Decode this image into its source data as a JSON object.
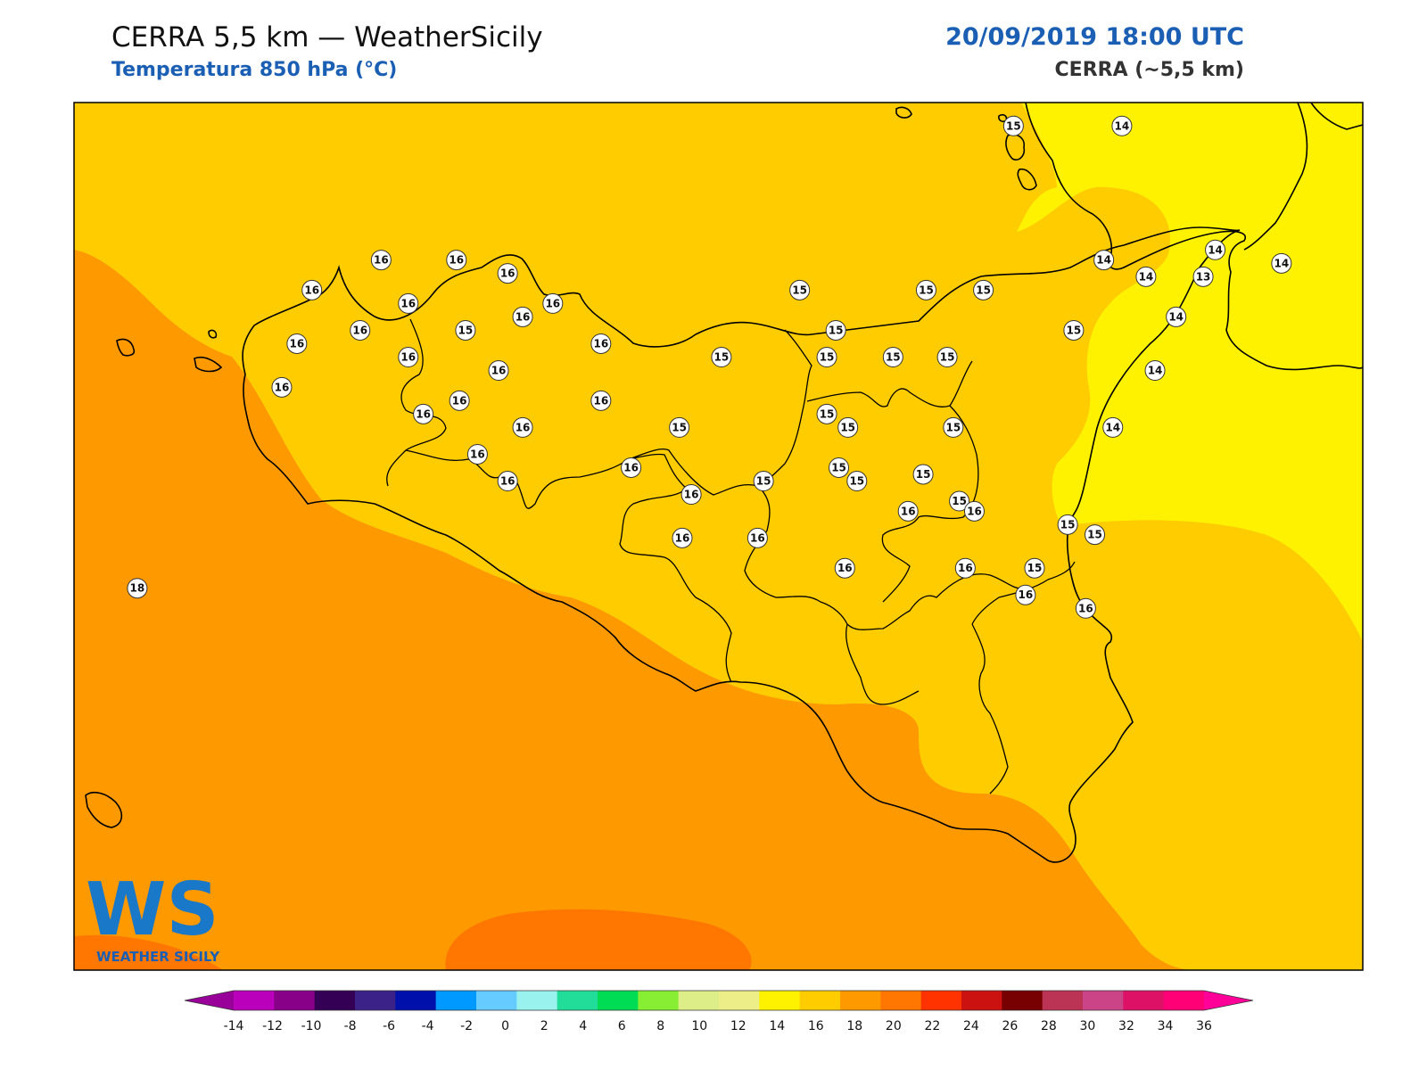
{
  "header": {
    "title": "CERRA 5,5 km — WeatherSicily",
    "subtitle": "Temperatura 850 hPa (°C)",
    "datetime": "20/09/2019 18:00 UTC",
    "model": "CERRA (~5,5 km)"
  },
  "logo": {
    "letters": "WS",
    "text": "WEATHER SICILY"
  },
  "colors": {
    "t12_14": "#fff200",
    "t14_16": "#ffcc00",
    "t16_18": "#ff9900",
    "t18_20": "#ff7700",
    "coast": "#000000",
    "accent": "#1a5fb4"
  },
  "point_labels": [
    {
      "v": "15",
      "lon": 14.88,
      "lat": 38.72
    },
    {
      "v": "14",
      "lon": 15.24,
      "lat": 38.72
    },
    {
      "v": "16",
      "lon": 12.78,
      "lat": 38.32
    },
    {
      "v": "16",
      "lon": 13.03,
      "lat": 38.32
    },
    {
      "v": "16",
      "lon": 13.2,
      "lat": 38.28
    },
    {
      "v": "14",
      "lon": 15.55,
      "lat": 38.35
    },
    {
      "v": "14",
      "lon": 15.77,
      "lat": 38.31
    },
    {
      "v": "14",
      "lon": 15.18,
      "lat": 38.32
    },
    {
      "v": "16",
      "lon": 12.55,
      "lat": 38.23
    },
    {
      "v": "15",
      "lon": 14.17,
      "lat": 38.23
    },
    {
      "v": "15",
      "lon": 14.59,
      "lat": 38.23
    },
    {
      "v": "15",
      "lon": 14.78,
      "lat": 38.23
    },
    {
      "v": "14",
      "lon": 15.32,
      "lat": 38.27
    },
    {
      "v": "13",
      "lon": 15.51,
      "lat": 38.27
    },
    {
      "v": "16",
      "lon": 12.87,
      "lat": 38.19
    },
    {
      "v": "16",
      "lon": 13.35,
      "lat": 38.19
    },
    {
      "v": "16",
      "lon": 13.25,
      "lat": 38.15
    },
    {
      "v": "16",
      "lon": 12.71,
      "lat": 38.11
    },
    {
      "v": "15",
      "lon": 13.06,
      "lat": 38.11
    },
    {
      "v": "15",
      "lon": 14.29,
      "lat": 38.11
    },
    {
      "v": "15",
      "lon": 15.08,
      "lat": 38.11
    },
    {
      "v": "14",
      "lon": 15.42,
      "lat": 38.15
    },
    {
      "v": "16",
      "lon": 12.5,
      "lat": 38.07
    },
    {
      "v": "16",
      "lon": 13.51,
      "lat": 38.07
    },
    {
      "v": "16",
      "lon": 12.87,
      "lat": 38.03
    },
    {
      "v": "15",
      "lon": 13.91,
      "lat": 38.03
    },
    {
      "v": "15",
      "lon": 14.26,
      "lat": 38.03
    },
    {
      "v": "15",
      "lon": 14.48,
      "lat": 38.03
    },
    {
      "v": "15",
      "lon": 14.66,
      "lat": 38.03
    },
    {
      "v": "16",
      "lon": 13.17,
      "lat": 37.99
    },
    {
      "v": "14",
      "lon": 15.35,
      "lat": 37.99
    },
    {
      "v": "16",
      "lon": 12.45,
      "lat": 37.94
    },
    {
      "v": "16",
      "lon": 13.04,
      "lat": 37.9
    },
    {
      "v": "16",
      "lon": 13.51,
      "lat": 37.9
    },
    {
      "v": "16",
      "lon": 12.92,
      "lat": 37.86
    },
    {
      "v": "15",
      "lon": 14.26,
      "lat": 37.86
    },
    {
      "v": "16",
      "lon": 13.25,
      "lat": 37.82
    },
    {
      "v": "15",
      "lon": 13.77,
      "lat": 37.82
    },
    {
      "v": "15",
      "lon": 14.33,
      "lat": 37.82
    },
    {
      "v": "15",
      "lon": 14.68,
      "lat": 37.82
    },
    {
      "v": "14",
      "lon": 15.21,
      "lat": 37.82
    },
    {
      "v": "16",
      "lon": 13.1,
      "lat": 37.74
    },
    {
      "v": "16",
      "lon": 13.61,
      "lat": 37.7
    },
    {
      "v": "15",
      "lon": 14.3,
      "lat": 37.7
    },
    {
      "v": "15",
      "lon": 14.58,
      "lat": 37.68
    },
    {
      "v": "16",
      "lon": 13.2,
      "lat": 37.66
    },
    {
      "v": "15",
      "lon": 14.05,
      "lat": 37.66
    },
    {
      "v": "15",
      "lon": 14.36,
      "lat": 37.66
    },
    {
      "v": "15",
      "lon": 14.7,
      "lat": 37.6
    },
    {
      "v": "16",
      "lon": 13.81,
      "lat": 37.62
    },
    {
      "v": "16",
      "lon": 14.53,
      "lat": 37.57
    },
    {
      "v": "16",
      "lon": 14.75,
      "lat": 37.57
    },
    {
      "v": "15",
      "lon": 15.06,
      "lat": 37.53
    },
    {
      "v": "15",
      "lon": 15.15,
      "lat": 37.5
    },
    {
      "v": "16",
      "lon": 13.78,
      "lat": 37.49
    },
    {
      "v": "16",
      "lon": 14.03,
      "lat": 37.49
    },
    {
      "v": "16",
      "lon": 14.32,
      "lat": 37.4
    },
    {
      "v": "16",
      "lon": 14.72,
      "lat": 37.4
    },
    {
      "v": "15",
      "lon": 14.95,
      "lat": 37.4
    },
    {
      "v": "16",
      "lon": 14.92,
      "lat": 37.32
    },
    {
      "v": "16",
      "lon": 15.12,
      "lat": 37.28
    },
    {
      "v": "18",
      "lon": 11.97,
      "lat": 37.34
    }
  ],
  "colorbar": {
    "ticks": [
      "-14",
      "-12",
      "-10",
      "-8",
      "-6",
      "-4",
      "-2",
      "0",
      "2",
      "4",
      "6",
      "8",
      "10",
      "12",
      "14",
      "16",
      "18",
      "20",
      "22",
      "24",
      "26",
      "28",
      "30",
      "32",
      "34",
      "36"
    ],
    "colors": [
      "#bb00bb",
      "#880088",
      "#330055",
      "#3a2288",
      "#0010aa",
      "#0099ff",
      "#66ccff",
      "#99f2ee",
      "#22dd99",
      "#00dd55",
      "#88ee33",
      "#ddee88",
      "#eeee88",
      "#fff200",
      "#ffcc00",
      "#ff9900",
      "#ff7700",
      "#ff3300",
      "#cc1111",
      "#770000",
      "#bb3355",
      "#cc4488",
      "#dd1166",
      "#ff0077"
    ],
    "under_color": "#990099",
    "over_color": "#ff0099"
  }
}
